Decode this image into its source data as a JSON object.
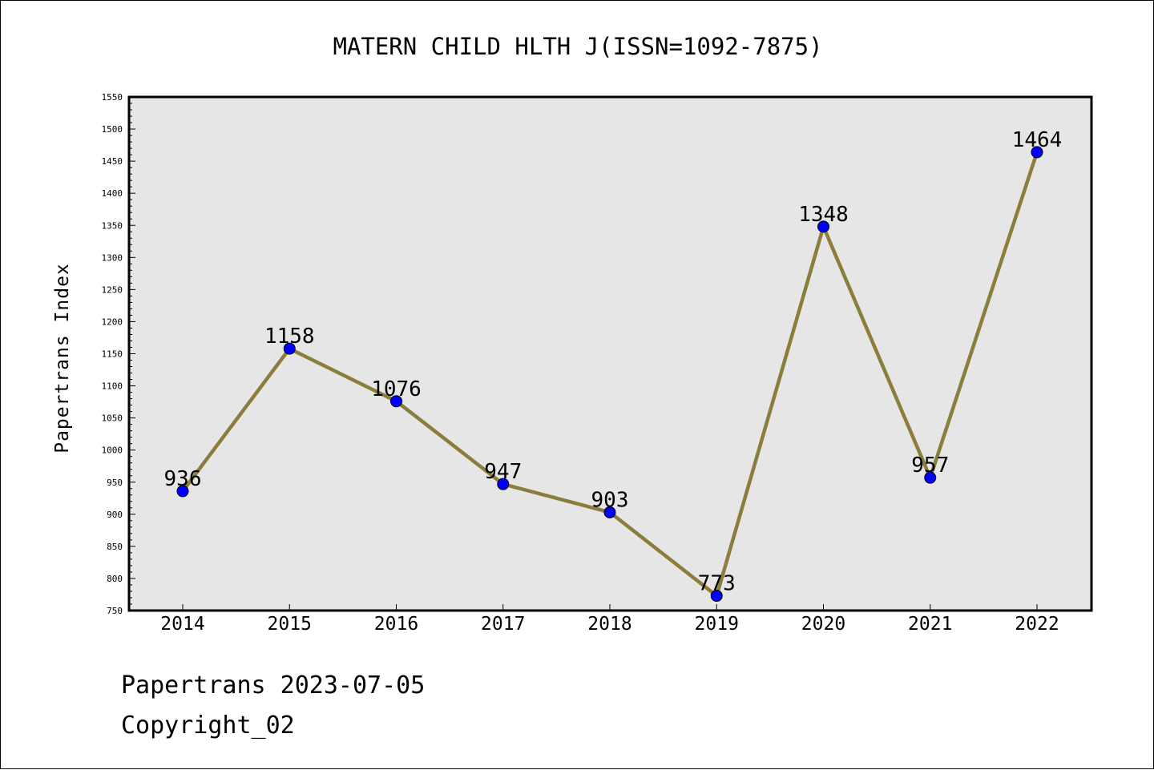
{
  "chart_data": {
    "type": "line",
    "title": "MATERN CHILD HLTH J(ISSN=1092-7875)",
    "xlabel": "",
    "ylabel": "Papertrans Index",
    "categories": [
      "2014",
      "2015",
      "2016",
      "2017",
      "2018",
      "2019",
      "2020",
      "2021",
      "2022"
    ],
    "values": [
      936,
      1158,
      1076,
      947,
      903,
      773,
      1348,
      957,
      1464
    ],
    "data_labels": [
      "936",
      "1158",
      "1076",
      "947",
      "903",
      "773",
      "1348",
      "957",
      "1464"
    ],
    "ylim": [
      750,
      1550
    ],
    "yticks": [
      "750",
      "800",
      "850",
      "900",
      "950",
      "1000",
      "1050",
      "1100",
      "1150",
      "1200",
      "1250",
      "1300",
      "1350",
      "1400",
      "1450",
      "1500",
      "1550"
    ],
    "grid": false,
    "legend": "none",
    "colors": {
      "line": "#8b7d3c",
      "marker": "#0000ff",
      "plot_background": "#e6e6e6"
    }
  },
  "footer": {
    "line1": "Papertrans 2023-07-05",
    "line2": "Copyright_02"
  }
}
